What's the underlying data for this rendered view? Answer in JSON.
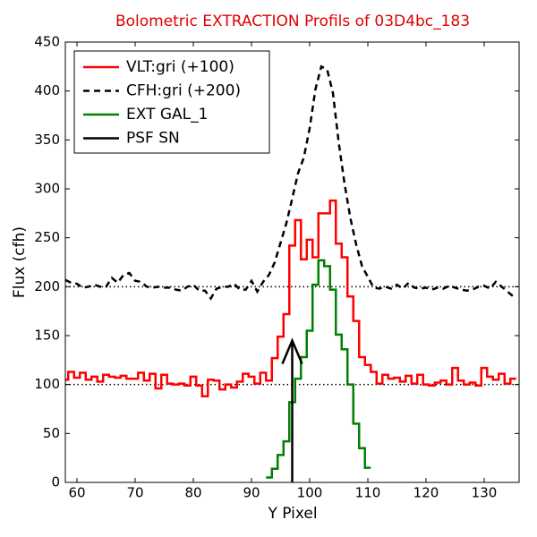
{
  "chart_data": {
    "type": "step",
    "title": "Bolometric EXTRACTION Profils of 03D4bc_183",
    "title_color": "#e00000",
    "xlabel": "Y Pixel",
    "ylabel": "Flux (cfh)",
    "xlim": [
      58,
      136
    ],
    "ylim": [
      0,
      450
    ],
    "xticks": [
      60,
      70,
      80,
      90,
      100,
      110,
      120,
      130
    ],
    "yticks": [
      0,
      50,
      100,
      150,
      200,
      250,
      300,
      350,
      400,
      450
    ],
    "hlines": [
      100,
      200
    ],
    "legend": "upper left",
    "series": [
      {
        "name": "VLT:gri (+100)",
        "color": "#ff0000",
        "style": "step",
        "x": [
          58,
          59,
          60,
          61,
          62,
          63,
          64,
          65,
          66,
          67,
          68,
          69,
          70,
          71,
          72,
          73,
          74,
          75,
          76,
          77,
          78,
          79,
          80,
          81,
          82,
          83,
          84,
          85,
          86,
          87,
          88,
          89,
          90,
          91,
          92,
          93,
          94,
          95,
          96,
          97,
          98,
          99,
          100,
          101,
          102,
          103,
          104,
          105,
          106,
          107,
          108,
          109,
          110,
          111,
          112,
          113,
          114,
          115,
          116,
          117,
          118,
          119,
          120,
          121,
          122,
          123,
          124,
          125,
          126,
          127,
          128,
          129,
          130,
          131,
          132,
          133,
          134,
          135
        ],
        "values": [
          105,
          113,
          107,
          112,
          105,
          108,
          103,
          110,
          108,
          107,
          109,
          106,
          106,
          112,
          104,
          111,
          96,
          110,
          101,
          100,
          101,
          99,
          108,
          99,
          88,
          105,
          104,
          95,
          100,
          97,
          103,
          111,
          108,
          101,
          112,
          104,
          127,
          149,
          172,
          242,
          268,
          228,
          248,
          230,
          275,
          275,
          288,
          244,
          230,
          190,
          165,
          128,
          120,
          113,
          101,
          110,
          106,
          107,
          103,
          109,
          101,
          110,
          100,
          99,
          102,
          104,
          100,
          117,
          104,
          100,
          102,
          99,
          117,
          108,
          105,
          111,
          101,
          106
        ]
      },
      {
        "name": "CFH:gri (+200)",
        "color": "#000000",
        "style": "dashed",
        "x": [
          58,
          59,
          60,
          61,
          62,
          63,
          64,
          65,
          66,
          67,
          68,
          69,
          70,
          71,
          72,
          73,
          74,
          75,
          76,
          77,
          78,
          79,
          80,
          81,
          82,
          83,
          84,
          85,
          86,
          87,
          88,
          89,
          90,
          91,
          92,
          93,
          94,
          95,
          96,
          97,
          98,
          99,
          100,
          101,
          102,
          103,
          104,
          105,
          106,
          107,
          108,
          109,
          110,
          111,
          112,
          113,
          114,
          115,
          116,
          117,
          118,
          119,
          120,
          121,
          122,
          123,
          124,
          125,
          126,
          127,
          128,
          129,
          130,
          131,
          132,
          133,
          134,
          135
        ],
        "values": [
          207,
          204,
          203,
          199,
          200,
          202,
          200,
          200,
          209,
          204,
          212,
          214,
          206,
          205,
          200,
          199,
          200,
          199,
          199,
          197,
          196,
          200,
          202,
          196,
          196,
          188,
          198,
          200,
          200,
          203,
          197,
          197,
          206,
          195,
          205,
          212,
          225,
          245,
          265,
          290,
          316,
          332,
          362,
          402,
          425,
          422,
          398,
          347,
          305,
          270,
          243,
          221,
          210,
          199,
          198,
          200,
          198,
          202,
          198,
          204,
          199,
          198,
          199,
          197,
          199,
          198,
          201,
          199,
          197,
          196,
          197,
          200,
          201,
          198,
          205,
          200,
          195,
          190
        ]
      },
      {
        "name": "EXT GAL_1",
        "color": "#008000",
        "style": "step",
        "x": [
          93,
          94,
          95,
          96,
          97,
          98,
          99,
          100,
          101,
          102,
          103,
          104,
          105,
          106,
          107,
          108,
          109,
          110
        ],
        "values": [
          5,
          14,
          28,
          42,
          82,
          106,
          128,
          155,
          202,
          227,
          221,
          197,
          151,
          136,
          100,
          60,
          35,
          15
        ]
      },
      {
        "name": "PSF SN",
        "color": "#000000",
        "style": "arrow",
        "x": [
          97,
          97
        ],
        "values": [
          0,
          145
        ]
      }
    ]
  }
}
